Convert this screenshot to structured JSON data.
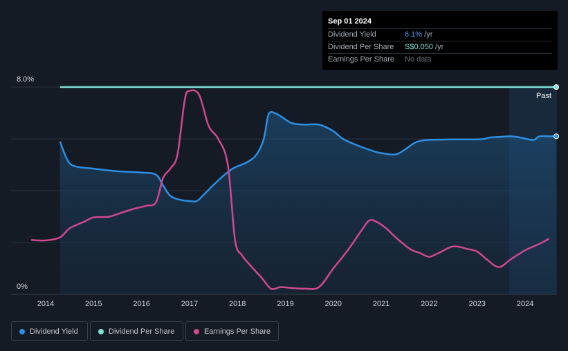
{
  "chart_data": {
    "type": "line",
    "y_axis": {
      "min_label": "0%",
      "max_label": "8.0%",
      "min": 0,
      "max": 8
    },
    "x_axis": {
      "ticks": [
        "2014",
        "2015",
        "2016",
        "2017",
        "2018",
        "2019",
        "2020",
        "2021",
        "2022",
        "2023",
        "2024"
      ],
      "range": [
        2013.5,
        2024.67
      ]
    },
    "past_label": "Past",
    "grid": true,
    "colors": {
      "dividend_yield": "#2d8fe3",
      "dividend_per_share": "#7fe0d4",
      "earnings_per_share": "#d0488f",
      "background": "#151b24"
    },
    "series": [
      {
        "key": "dividend_yield",
        "name": "Dividend Yield",
        "unit": "%",
        "points": [
          [
            2014.3,
            5.9
          ],
          [
            2014.45,
            5.2
          ],
          [
            2014.6,
            4.95
          ],
          [
            2015.0,
            4.85
          ],
          [
            2015.5,
            4.75
          ],
          [
            2016.0,
            4.7
          ],
          [
            2016.3,
            4.62
          ],
          [
            2016.45,
            4.2
          ],
          [
            2016.6,
            3.8
          ],
          [
            2016.8,
            3.65
          ],
          [
            2017.0,
            3.6
          ],
          [
            2017.15,
            3.6
          ],
          [
            2017.3,
            3.85
          ],
          [
            2017.6,
            4.4
          ],
          [
            2017.9,
            4.85
          ],
          [
            2018.2,
            5.1
          ],
          [
            2018.4,
            5.4
          ],
          [
            2018.55,
            6.0
          ],
          [
            2018.65,
            6.95
          ],
          [
            2018.8,
            6.98
          ],
          [
            2019.0,
            6.75
          ],
          [
            2019.15,
            6.6
          ],
          [
            2019.4,
            6.55
          ],
          [
            2019.7,
            6.55
          ],
          [
            2020.0,
            6.3
          ],
          [
            2020.2,
            6.0
          ],
          [
            2020.5,
            5.75
          ],
          [
            2020.8,
            5.55
          ],
          [
            2021.0,
            5.45
          ],
          [
            2021.3,
            5.4
          ],
          [
            2021.5,
            5.6
          ],
          [
            2021.7,
            5.85
          ],
          [
            2021.9,
            5.95
          ],
          [
            2022.2,
            5.97
          ],
          [
            2022.6,
            5.98
          ],
          [
            2023.0,
            5.98
          ],
          [
            2023.15,
            6.0
          ],
          [
            2023.25,
            6.05
          ],
          [
            2023.5,
            6.08
          ],
          [
            2023.7,
            6.1
          ],
          [
            2023.9,
            6.05
          ],
          [
            2024.1,
            5.97
          ],
          [
            2024.2,
            5.97
          ],
          [
            2024.3,
            6.1
          ],
          [
            2024.5,
            6.1
          ],
          [
            2024.65,
            6.1
          ]
        ]
      },
      {
        "key": "dividend_per_share",
        "name": "Dividend Per Share",
        "unit": "S$",
        "points": [
          [
            2014.3,
            8.0
          ],
          [
            2024.65,
            8.0
          ]
        ]
      },
      {
        "key": "earnings_per_share",
        "name": "Earnings Per Share",
        "unit": "S$",
        "points": [
          [
            2013.7,
            2.1
          ],
          [
            2014.0,
            2.08
          ],
          [
            2014.3,
            2.2
          ],
          [
            2014.5,
            2.55
          ],
          [
            2014.8,
            2.8
          ],
          [
            2015.0,
            2.97
          ],
          [
            2015.3,
            2.99
          ],
          [
            2015.5,
            3.1
          ],
          [
            2015.8,
            3.28
          ],
          [
            2016.1,
            3.42
          ],
          [
            2016.3,
            3.55
          ],
          [
            2016.45,
            4.5
          ],
          [
            2016.6,
            4.85
          ],
          [
            2016.75,
            5.4
          ],
          [
            2016.9,
            7.5
          ],
          [
            2017.0,
            7.85
          ],
          [
            2017.2,
            7.7
          ],
          [
            2017.4,
            6.5
          ],
          [
            2017.6,
            6.0
          ],
          [
            2017.8,
            5.0
          ],
          [
            2017.95,
            2.1
          ],
          [
            2018.1,
            1.5
          ],
          [
            2018.3,
            1.05
          ],
          [
            2018.5,
            0.65
          ],
          [
            2018.7,
            0.22
          ],
          [
            2018.9,
            0.28
          ],
          [
            2019.1,
            0.25
          ],
          [
            2019.4,
            0.22
          ],
          [
            2019.7,
            0.28
          ],
          [
            2020.0,
            1.0
          ],
          [
            2020.3,
            1.7
          ],
          [
            2020.6,
            2.5
          ],
          [
            2020.75,
            2.85
          ],
          [
            2020.9,
            2.8
          ],
          [
            2021.1,
            2.55
          ],
          [
            2021.3,
            2.2
          ],
          [
            2021.6,
            1.75
          ],
          [
            2021.8,
            1.6
          ],
          [
            2022.0,
            1.45
          ],
          [
            2022.2,
            1.6
          ],
          [
            2022.5,
            1.85
          ],
          [
            2022.8,
            1.75
          ],
          [
            2023.0,
            1.65
          ],
          [
            2023.2,
            1.35
          ],
          [
            2023.45,
            1.05
          ],
          [
            2023.7,
            1.35
          ],
          [
            2024.0,
            1.7
          ],
          [
            2024.3,
            1.95
          ],
          [
            2024.5,
            2.15
          ]
        ]
      }
    ],
    "forecast_shading_from": 2023.67
  },
  "tooltip": {
    "date": "Sep 01 2024",
    "rows": [
      {
        "label": "Dividend Yield",
        "value": "6.1%",
        "suffix": " /yr"
      },
      {
        "label": "Dividend Per Share",
        "value": "S$0.050",
        "suffix": " /yr"
      },
      {
        "label": "Earnings Per Share",
        "value": "No data",
        "suffix": ""
      }
    ]
  },
  "legend": [
    {
      "label": "Dividend Yield",
      "color": "#2d8fe3"
    },
    {
      "label": "Dividend Per Share",
      "color": "#7fe0d4"
    },
    {
      "label": "Earnings Per Share",
      "color": "#d0488f"
    }
  ]
}
